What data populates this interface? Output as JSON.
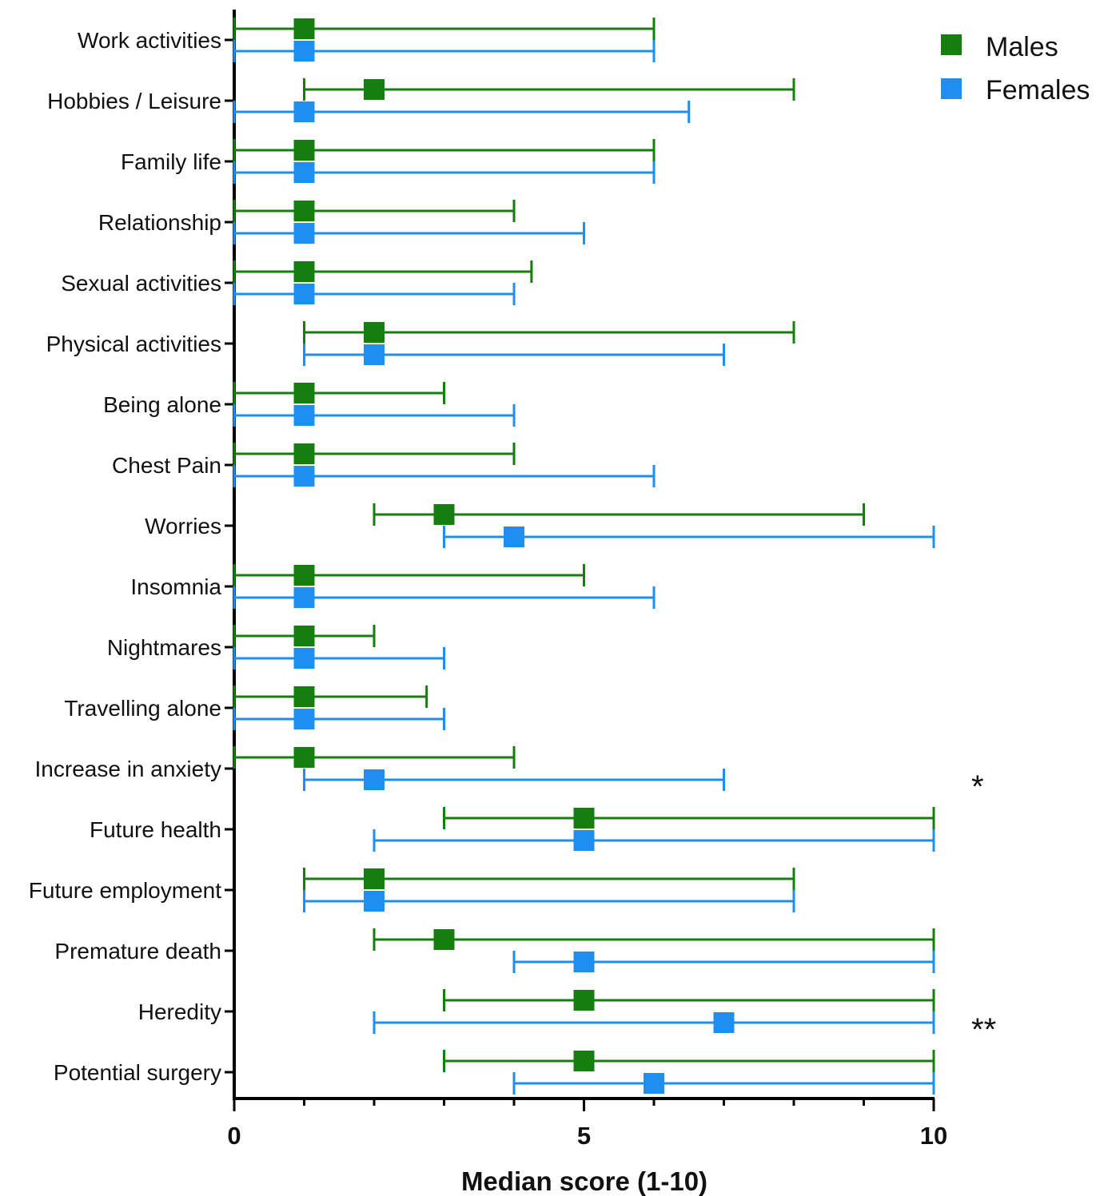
{
  "chart_data": {
    "type": "range",
    "title": "",
    "xlabel": "Median score (1-10)",
    "xlim": [
      0,
      10
    ],
    "xticks": [
      0,
      5,
      10
    ],
    "legend_position": "top-right",
    "categories": [
      "Work activities",
      "Hobbies / Leisure",
      "Family life",
      "Relationship",
      "Sexual activities",
      "Physical activities",
      "Being alone",
      "Chest Pain",
      "Worries",
      "Insomnia",
      "Nightmares",
      "Travelling alone",
      "Increase in anxiety",
      "Future health",
      "Future employment",
      "Premature death",
      "Heredity",
      "Potential surgery"
    ],
    "series": [
      {
        "name": "Males",
        "color": "#167d0f",
        "median": [
          1,
          2,
          1,
          1,
          1,
          2,
          1,
          1,
          3,
          1,
          1,
          1,
          1,
          5,
          2,
          3,
          5,
          5
        ],
        "low": [
          0,
          1,
          0,
          0,
          0,
          1,
          0,
          0,
          2,
          0,
          0,
          0,
          0,
          3,
          1,
          2,
          3,
          3
        ],
        "high": [
          6,
          8,
          6,
          4,
          4.25,
          8,
          3,
          4,
          9,
          5,
          2,
          2.75,
          4,
          10,
          8,
          10,
          10,
          10
        ]
      },
      {
        "name": "Females",
        "color": "#1e8ef0",
        "median": [
          1,
          1,
          1,
          1,
          1,
          2,
          1,
          1,
          4,
          1,
          1,
          1,
          2,
          5,
          2,
          5,
          7,
          6
        ],
        "low": [
          0,
          0,
          0,
          0,
          0,
          1,
          0,
          0,
          3,
          0,
          0,
          0,
          1,
          2,
          1,
          4,
          2,
          4
        ],
        "high": [
          6,
          6.5,
          6,
          5,
          4,
          7,
          4,
          6,
          10,
          6,
          3,
          3,
          7,
          10,
          8,
          10,
          10,
          10
        ]
      }
    ],
    "annotations": [
      {
        "category": "Increase in anxiety",
        "text": "*"
      },
      {
        "category": "Heredity",
        "text": "**"
      }
    ]
  }
}
